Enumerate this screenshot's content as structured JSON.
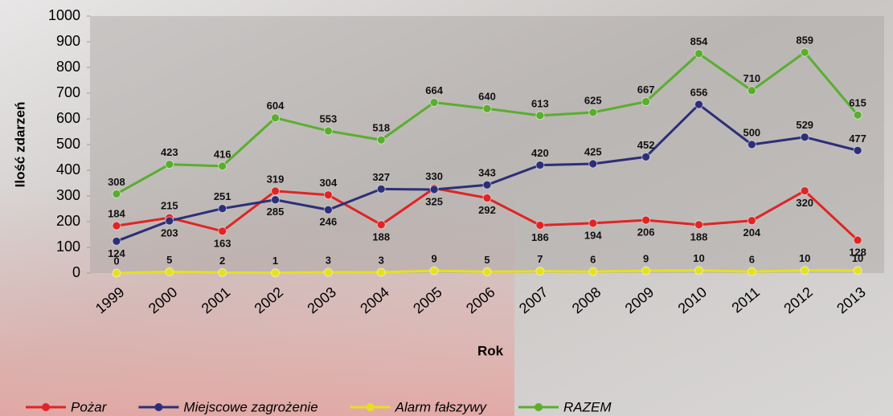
{
  "chart_data": {
    "type": "line",
    "y_label": "Ilość zdarzeń",
    "x_label": "Rok",
    "categories": [
      "1999",
      "2000",
      "2001",
      "2002",
      "2003",
      "2004",
      "2005",
      "2006",
      "2007",
      "2008",
      "2009",
      "2010",
      "2011",
      "2012",
      "2013"
    ],
    "series": [
      {
        "name": "Pożar",
        "color": "#e02424",
        "values": [
          184,
          215,
          163,
          319,
          304,
          188,
          330,
          292,
          186,
          194,
          206,
          188,
          204,
          320,
          128
        ]
      },
      {
        "name": "Miejscowe zagrożenie",
        "color": "#2c2f78",
        "values": [
          124,
          203,
          251,
          285,
          246,
          327,
          325,
          343,
          420,
          425,
          452,
          656,
          500,
          529,
          477
        ]
      },
      {
        "name": "Alarm fałszywy",
        "color": "#e6e01e",
        "values": [
          0,
          5,
          2,
          1,
          3,
          3,
          9,
          5,
          7,
          6,
          9,
          10,
          6,
          10,
          10
        ]
      },
      {
        "name": "RAZEM",
        "color": "#5aae2e",
        "values": [
          308,
          423,
          416,
          604,
          553,
          518,
          664,
          640,
          613,
          625,
          667,
          854,
          710,
          859,
          615
        ]
      }
    ],
    "ylim": [
      0,
      1000
    ],
    "yticks": [
      0,
      100,
      200,
      300,
      400,
      500,
      600,
      700,
      800,
      900,
      1000
    ],
    "legend": "bottom"
  }
}
